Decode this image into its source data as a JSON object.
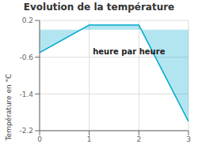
{
  "chart_data": {
    "type": "area",
    "title": "Evolution de la température",
    "y_label": "Température en °C",
    "x": [
      0,
      1,
      2,
      3
    ],
    "values": [
      -0.5,
      0.1,
      0.1,
      -2.0
    ],
    "color": "#00aacc",
    "xlim": [
      0,
      3
    ],
    "ylim": [
      -2.2,
      0.2
    ],
    "xticks": [
      0,
      1,
      2,
      3
    ],
    "yticks": [
      0.2,
      -0.6,
      -1.4,
      -2.2
    ],
    "grid": true,
    "annotations": [
      {
        "text": "heure par heure",
        "x": 1.8,
        "y": -0.38
      }
    ]
  }
}
